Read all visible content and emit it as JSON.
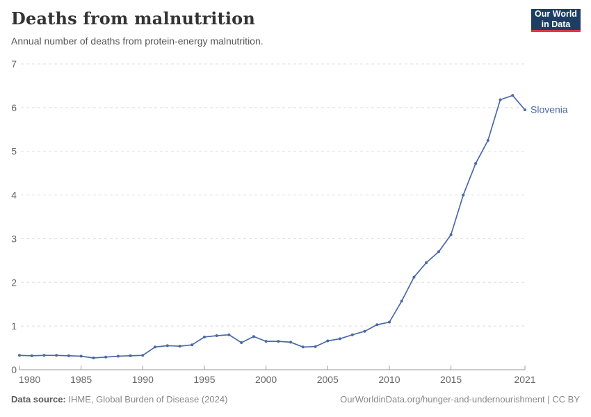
{
  "header": {
    "title": "Deaths from malnutrition",
    "subtitle": "Annual number of deaths from protein-energy malnutrition."
  },
  "logo": {
    "line1": "Our World",
    "line2": "in Data",
    "bg_color": "#1d3d63",
    "accent_color": "#e0373f"
  },
  "footer": {
    "source_label": "Data source:",
    "source_text": " IHME, Global Burden of Disease (2024)",
    "right_text": "OurWorldinData.org/hunger-and-undernourishment | CC BY"
  },
  "chart_data": {
    "type": "line",
    "title": "Deaths from malnutrition",
    "subtitle": "Annual number of deaths from protein-energy malnutrition.",
    "xlabel": "",
    "ylabel": "",
    "xlim": [
      1980,
      2021
    ],
    "ylim": [
      0,
      7
    ],
    "x_ticks": [
      1980,
      1985,
      1990,
      1995,
      2000,
      2005,
      2010,
      2015,
      2021
    ],
    "y_ticks": [
      0,
      1,
      2,
      3,
      4,
      5,
      6,
      7
    ],
    "grid": "horizontal-dashed",
    "legend": "end-of-line-label",
    "line_color": "#4a69a5",
    "grid_color": "#dddddd",
    "axis_color": "#999999",
    "tick_label_color": "#666666",
    "x": [
      1980,
      1981,
      1982,
      1983,
      1984,
      1985,
      1986,
      1987,
      1988,
      1989,
      1990,
      1991,
      1992,
      1993,
      1994,
      1995,
      1996,
      1997,
      1998,
      1999,
      2000,
      2001,
      2002,
      2003,
      2004,
      2005,
      2006,
      2007,
      2008,
      2009,
      2010,
      2011,
      2012,
      2013,
      2014,
      2015,
      2016,
      2017,
      2018,
      2019,
      2020,
      2021
    ],
    "series": [
      {
        "name": "Slovenia",
        "values": [
          0.33,
          0.32,
          0.33,
          0.33,
          0.32,
          0.31,
          0.27,
          0.29,
          0.31,
          0.32,
          0.33,
          0.52,
          0.55,
          0.54,
          0.57,
          0.75,
          0.78,
          0.8,
          0.62,
          0.76,
          0.65,
          0.65,
          0.63,
          0.52,
          0.53,
          0.66,
          0.71,
          0.8,
          0.88,
          1.03,
          1.09,
          1.57,
          2.12,
          2.45,
          2.7,
          3.09,
          4.0,
          4.72,
          5.25,
          6.18,
          6.28,
          5.95
        ]
      }
    ]
  }
}
